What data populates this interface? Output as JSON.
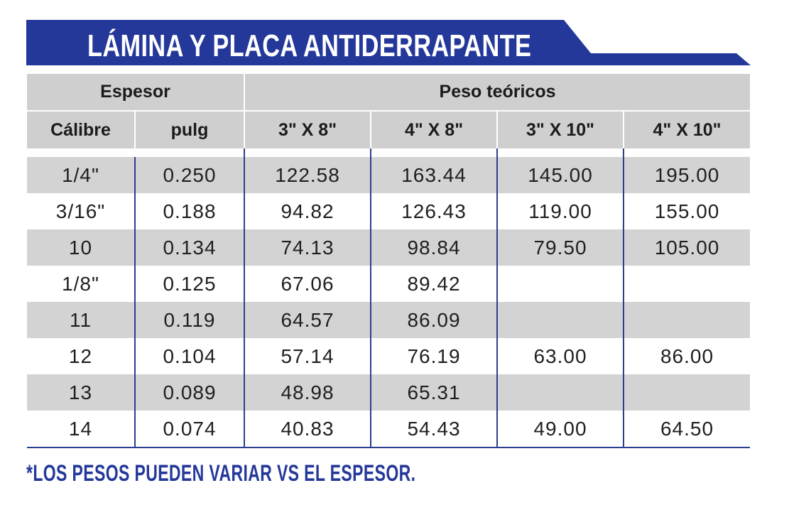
{
  "title": "LÁMINA Y PLACA ANTIDERRAPANTE",
  "colors": {
    "banner": "#24389a",
    "header_bg": "#cfcfd0",
    "row_shade": "#d3d3d4",
    "rule": "#2a3f8f"
  },
  "table": {
    "group_headers": {
      "espesor": "Espesor",
      "peso": "Peso teóricos"
    },
    "columns": [
      "Cálibre",
      "pulg",
      "3\" X 8\"",
      "4\" X 8\"",
      "3\" X 10\"",
      "4\" X 10\""
    ],
    "rows": [
      [
        "1/4\"",
        "0.250",
        "122.58",
        "163.44",
        "145.00",
        "195.00"
      ],
      [
        "3/16\"",
        "0.188",
        "94.82",
        "126.43",
        "119.00",
        "155.00"
      ],
      [
        "10",
        "0.134",
        "74.13",
        "98.84",
        "79.50",
        "105.00"
      ],
      [
        "1/8\"",
        "0.125",
        "67.06",
        "89.42",
        "",
        ""
      ],
      [
        "11",
        "0.119",
        "64.57",
        "86.09",
        "",
        ""
      ],
      [
        "12",
        "0.104",
        "57.14",
        "76.19",
        "63.00",
        "86.00"
      ],
      [
        "13",
        "0.089",
        "48.98",
        "65.31",
        "",
        ""
      ],
      [
        "14",
        "0.074",
        "40.83",
        "54.43",
        "49.00",
        "64.50"
      ]
    ]
  },
  "footer": "*LOS PESOS PUEDEN VARIAR VS EL ESPESOR."
}
